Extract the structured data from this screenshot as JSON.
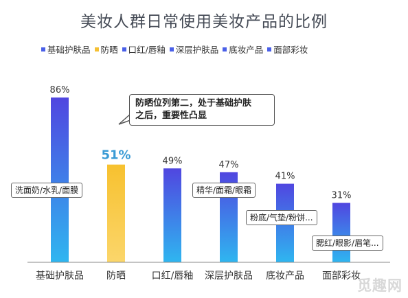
{
  "chart_data": {
    "type": "bar",
    "title": "美妆人群日常使用美妆产品的比例",
    "categories": [
      "基础护肤品",
      "防晒",
      "口红/唇釉",
      "深层护肤品",
      "底妆产品",
      "面部彩妆"
    ],
    "values": [
      86,
      51,
      49,
      47,
      41,
      31
    ],
    "value_labels": [
      "86%",
      "51%",
      "49%",
      "47%",
      "41%",
      "31%"
    ],
    "ylim": [
      0,
      100
    ],
    "grid": false,
    "legend_position": "top",
    "highlight_index": 1
  },
  "legend": [
    {
      "label": "基础护肤品",
      "color": "#4a60e8"
    },
    {
      "label": "防晒",
      "color": "#f5c033"
    },
    {
      "label": "口红/唇釉",
      "color": "#4a60e8"
    },
    {
      "label": "深层护肤品",
      "color": "#4a60e8"
    },
    {
      "label": "底妆产品",
      "color": "#4a60e8"
    },
    {
      "label": "面部彩妆",
      "color": "#4a60e8"
    }
  ],
  "colors": {
    "bar_top": "#5046e0",
    "bar_bottom": "#2fb6f0",
    "highlight_top": "#f7c12f",
    "highlight_bottom": "#fbd66b",
    "highlight_text": "#3a9bd5"
  },
  "callout": {
    "line1": "防晒位列第二，处于基础护肤",
    "line2": "之后，重要性凸显"
  },
  "notes": [
    "洗面奶/水乳/面膜",
    "精华/面霜/眼霜",
    "粉底/气垫/粉饼...",
    "腮红/眼影/眉笔..."
  ],
  "watermark": "觅趣网"
}
